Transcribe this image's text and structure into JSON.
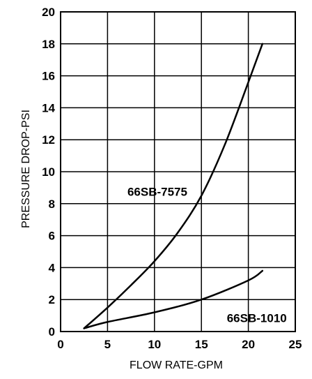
{
  "chart_data": {
    "type": "line",
    "title": "",
    "xlabel": "FLOW RATE-GPM",
    "ylabel": "PRESSURE DROP-PSI",
    "xlim": [
      0,
      25
    ],
    "ylim": [
      0,
      20
    ],
    "x_ticks": [
      0,
      5,
      10,
      15,
      20,
      25
    ],
    "y_ticks": [
      0,
      2,
      4,
      6,
      8,
      10,
      12,
      14,
      16,
      18,
      20
    ],
    "grid": true,
    "legend": "none",
    "series": [
      {
        "name": "66SB-7575",
        "x": [
          2.5,
          5,
          7.5,
          10,
          12.5,
          15,
          17.5,
          20,
          21.5
        ],
        "y": [
          0.2,
          1.5,
          2.9,
          4.4,
          6.2,
          8.5,
          11.7,
          15.6,
          18.0
        ]
      },
      {
        "name": "66SB-1010",
        "x": [
          2.5,
          5,
          10,
          15,
          20,
          21.5
        ],
        "y": [
          0.2,
          0.6,
          1.2,
          2.0,
          3.2,
          3.8
        ]
      }
    ]
  }
}
